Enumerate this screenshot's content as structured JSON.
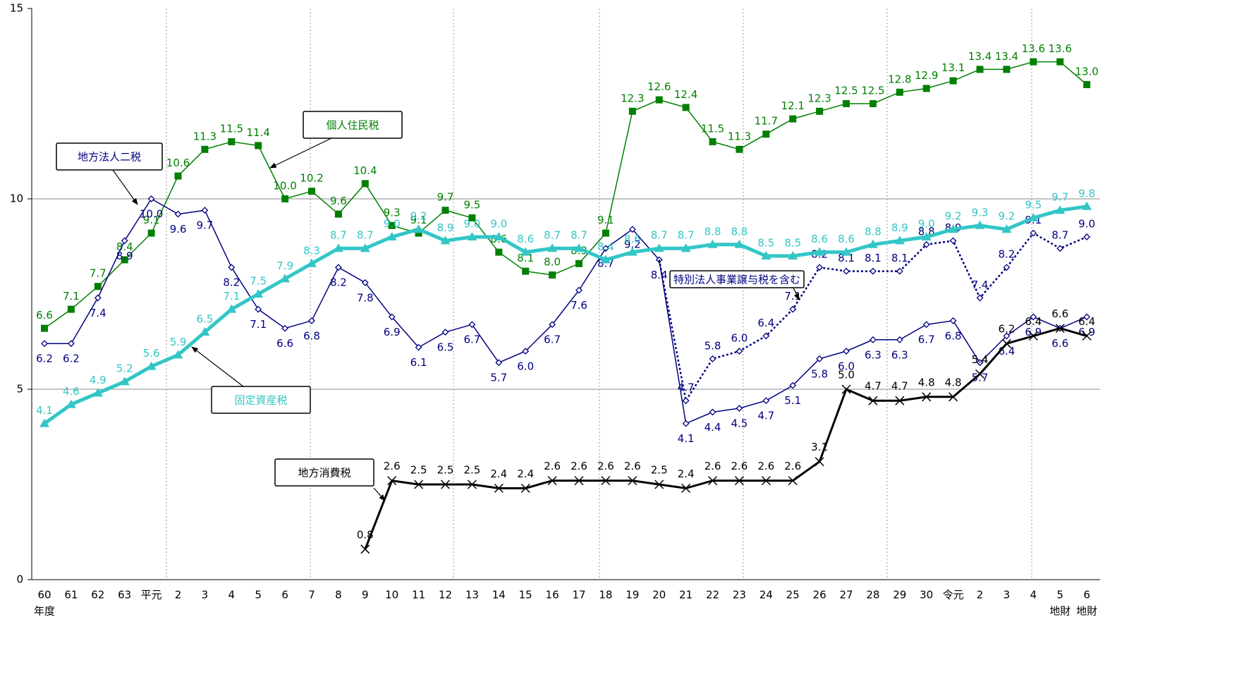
{
  "chart_data": {
    "type": "line",
    "categories": [
      "60",
      "61",
      "62",
      "63",
      "平元",
      "2",
      "3",
      "4",
      "5",
      "6",
      "7",
      "8",
      "9",
      "10",
      "11",
      "12",
      "13",
      "14",
      "15",
      "16",
      "17",
      "18",
      "19",
      "20",
      "21",
      "22",
      "23",
      "24",
      "25",
      "26",
      "27",
      "28",
      "29",
      "30",
      "令元",
      "2",
      "3",
      "4",
      "5",
      "6"
    ],
    "x_sub_labels": [
      "年度",
      null,
      null,
      null,
      null,
      null,
      null,
      null,
      null,
      null,
      null,
      null,
      null,
      null,
      null,
      null,
      null,
      null,
      null,
      null,
      null,
      null,
      null,
      null,
      null,
      null,
      null,
      null,
      null,
      null,
      null,
      null,
      null,
      null,
      null,
      null,
      null,
      null,
      "地財",
      "地財"
    ],
    "ylim": [
      0,
      15
    ],
    "yticks": [
      0,
      5,
      10,
      15
    ],
    "grid": true,
    "series": [
      {
        "name": "個人住民税",
        "color": "#008000",
        "marker": "square",
        "values": [
          6.6,
          7.1,
          7.7,
          8.4,
          9.1,
          10.6,
          11.3,
          11.5,
          11.4,
          10.0,
          10.2,
          9.6,
          10.4,
          9.3,
          9.1,
          9.7,
          9.5,
          8.6,
          8.1,
          8.0,
          8.3,
          9.1,
          12.3,
          12.6,
          12.4,
          11.5,
          11.3,
          11.7,
          12.1,
          12.3,
          12.5,
          12.5,
          12.8,
          12.9,
          13.1,
          13.4,
          13.4,
          13.6,
          13.6,
          13.0
        ],
        "value_labels": [
          "6.6",
          "7.1",
          "7.7",
          "8.4",
          "9.1",
          "10.6",
          "11.3",
          "11.5",
          "11.4",
          "10.0",
          "10.2",
          "9.6",
          "10.4",
          "9.3",
          "9.1",
          "9.7",
          "9.5",
          "8.6",
          "8.1",
          "8.0",
          "8.3",
          "9.1",
          "12.3",
          "12.6",
          "12.4",
          "11.5",
          "11.3",
          "11.7",
          "12.1",
          "12.3",
          "12.5",
          "12.5",
          "12.8",
          "12.9",
          "13.1",
          "13.4",
          "13.4",
          "13.6",
          "13.6",
          "13.0"
        ]
      },
      {
        "name": "地方法人二税",
        "color": "#000080",
        "marker": "diamond",
        "values": [
          6.2,
          6.2,
          7.4,
          8.9,
          10.0,
          9.6,
          9.7,
          8.2,
          7.1,
          6.6,
          6.8,
          8.2,
          7.8,
          6.9,
          6.1,
          6.5,
          6.7,
          5.7,
          6.0,
          6.7,
          7.6,
          8.7,
          9.2,
          8.4,
          4.1,
          4.4,
          4.5,
          4.7,
          5.1,
          5.8,
          6.0,
          6.3,
          6.3,
          6.7,
          6.8,
          5.7,
          6.4,
          6.9,
          6.6,
          6.9
        ],
        "value_labels": [
          "6.2",
          "6.2",
          "7.4",
          "8.9",
          "10.0",
          "9.6",
          "9.7",
          "8.2",
          "7.1",
          "6.6",
          "6.8",
          "8.2",
          "7.8",
          "6.9",
          "6.1",
          "6.5",
          "6.7",
          "5.7",
          "6.0",
          "6.7",
          "7.6",
          "8.7",
          "9.2",
          "8.4",
          "4.1",
          "4.4",
          "4.5",
          "4.7",
          "5.1",
          "5.8",
          "6.0",
          "6.3",
          "6.3",
          "6.7",
          "6.8",
          "5.7",
          "6.4",
          "6.9",
          "6.6",
          "6.9"
        ]
      },
      {
        "name": "特別法人事業譲与税を含む",
        "color": "#000080",
        "marker": "diamond",
        "dashed": true,
        "values": [
          null,
          null,
          null,
          null,
          null,
          null,
          null,
          null,
          null,
          null,
          null,
          null,
          null,
          null,
          null,
          null,
          null,
          null,
          null,
          null,
          null,
          null,
          null,
          8.4,
          4.7,
          5.8,
          6.0,
          6.4,
          7.1,
          8.2,
          8.1,
          8.1,
          8.1,
          8.8,
          8.9,
          7.4,
          8.2,
          9.1,
          8.7,
          9.0
        ],
        "value_labels": [
          null,
          null,
          null,
          null,
          null,
          null,
          null,
          null,
          null,
          null,
          null,
          null,
          null,
          null,
          null,
          null,
          null,
          null,
          null,
          null,
          null,
          null,
          null,
          null,
          "4.7",
          "5.8",
          "6.0",
          "6.4",
          "7.1",
          "8.2",
          "8.1",
          "8.1",
          "8.1",
          "8.8",
          "8.9",
          "7.4",
          "8.2",
          "9.1",
          "8.7",
          "9.0"
        ]
      },
      {
        "name": "固定資産税",
        "color": "#33c6c6",
        "marker": "triangle",
        "values": [
          4.1,
          4.6,
          4.9,
          5.2,
          5.6,
          5.9,
          6.5,
          7.1,
          7.5,
          7.9,
          8.3,
          8.7,
          8.7,
          9.0,
          9.2,
          8.9,
          9.0,
          9.0,
          8.6,
          8.7,
          8.7,
          8.4,
          8.6,
          8.7,
          8.7,
          8.8,
          8.8,
          8.5,
          8.5,
          8.6,
          8.6,
          8.8,
          8.9,
          9.0,
          9.2,
          9.3,
          9.2,
          9.5,
          9.7,
          9.8
        ],
        "value_labels": [
          "4.1",
          "4.6",
          "4.9",
          "5.2",
          "5.6",
          "5.9",
          "6.5",
          "7.1",
          "7.5",
          "7.9",
          "8.3",
          "8.7",
          "8.7",
          "9.0",
          "9.2",
          "8.9",
          "9.0",
          "9.0",
          "8.6",
          "8.7",
          "8.7",
          "8.4",
          "8.6",
          "8.7",
          "8.7",
          "8.8",
          "8.8",
          "8.5",
          "8.5",
          "8.6",
          "8.6",
          "8.8",
          "8.9",
          "9.0",
          "9.2",
          "9.3",
          "9.2",
          "9.5",
          "9.7",
          "9.8"
        ]
      },
      {
        "name": "地方消費税",
        "color": "#000000",
        "marker": "x",
        "values": [
          null,
          null,
          null,
          null,
          null,
          null,
          null,
          null,
          null,
          null,
          null,
          null,
          0.8,
          2.6,
          2.5,
          2.5,
          2.5,
          2.4,
          2.4,
          2.6,
          2.6,
          2.6,
          2.6,
          2.5,
          2.4,
          2.6,
          2.6,
          2.6,
          2.6,
          3.1,
          5.0,
          4.7,
          4.7,
          4.8,
          4.8,
          5.4,
          6.2,
          6.4,
          6.6,
          6.4
        ],
        "value_labels": [
          null,
          null,
          null,
          null,
          null,
          null,
          null,
          null,
          null,
          null,
          null,
          null,
          "0.8",
          "2.6",
          "2.5",
          "2.5",
          "2.5",
          "2.4",
          "2.4",
          "2.6",
          "2.6",
          "2.6",
          "2.6",
          "2.5",
          "2.4",
          "2.6",
          "2.6",
          "2.6",
          "2.6",
          "3.1",
          "5.0",
          "4.7",
          "4.7",
          "4.8",
          "4.8",
          "5.4",
          "6.2",
          "6.4",
          "6.6",
          "6.4"
        ]
      }
    ]
  }
}
